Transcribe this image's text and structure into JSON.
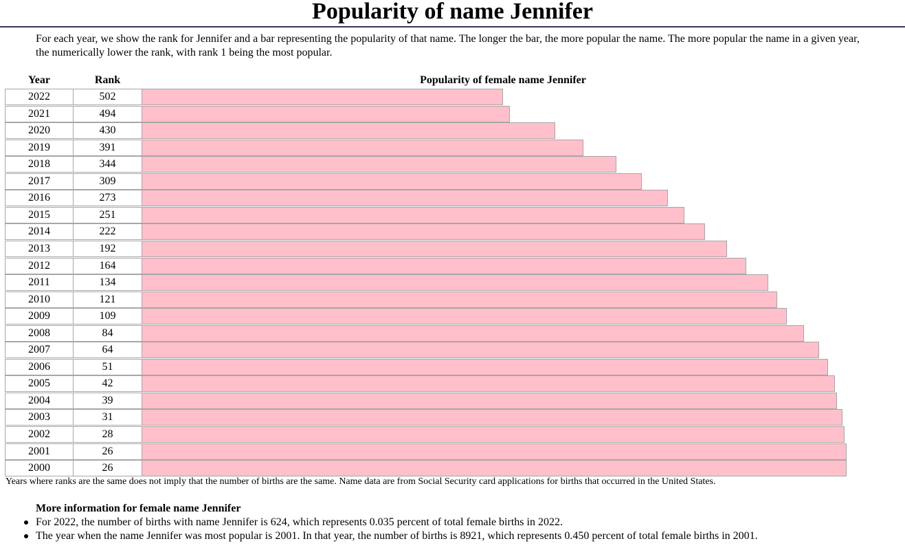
{
  "page": {
    "title": "Popularity of name Jennifer",
    "intro": "For each year, we show the rank for Jennifer and a bar representing the popularity of that name. The longer the bar, the more popular the name. The more popular the name in a given year, the numerically lower the rank, with rank 1 being the most popular.",
    "note": "Years where ranks are the same does not imply that the number of births are the same. Name data are from Social Security card applications for births that occurred in the United States.",
    "more_heading": "More information for female name Jennifer",
    "more_items": [
      "For 2022, the number of births with name Jennifer is 624, which represents 0.035 percent of total female births in 2022.",
      "The year when the name Jennifer was most popular is 2001. In that year, the number of births is 8921, which represents 0.450 percent of total female births in 2001."
    ]
  },
  "colors": {
    "bar": "#ffc0cb",
    "bar_border": "#a6a6a6",
    "title_rule": "#3c3560"
  },
  "chart_data": {
    "type": "bar",
    "orientation": "horizontal",
    "title": "Popularity of female name Jennifer",
    "column_headers": [
      "Year",
      "Rank"
    ],
    "categories": [
      "2022",
      "2021",
      "2020",
      "2019",
      "2018",
      "2017",
      "2016",
      "2015",
      "2014",
      "2013",
      "2012",
      "2011",
      "2010",
      "2009",
      "2008",
      "2007",
      "2006",
      "2005",
      "2004",
      "2003",
      "2002",
      "2001",
      "2000"
    ],
    "series": [
      {
        "values": [
          502,
          494,
          430,
          391,
          344,
          309,
          273,
          251,
          222,
          192,
          164,
          134,
          121,
          109,
          84,
          64,
          51,
          42,
          39,
          31,
          28,
          26,
          26
        ]
      }
    ],
    "popularity": [
      0.511,
      0.52,
      0.585,
      0.625,
      0.672,
      0.708,
      0.745,
      0.768,
      0.797,
      0.828,
      0.856,
      0.887,
      0.9,
      0.913,
      0.938,
      0.959,
      0.972,
      0.981,
      0.984,
      0.992,
      0.995,
      0.998,
      0.998
    ],
    "grid": false,
    "legend": "none"
  }
}
